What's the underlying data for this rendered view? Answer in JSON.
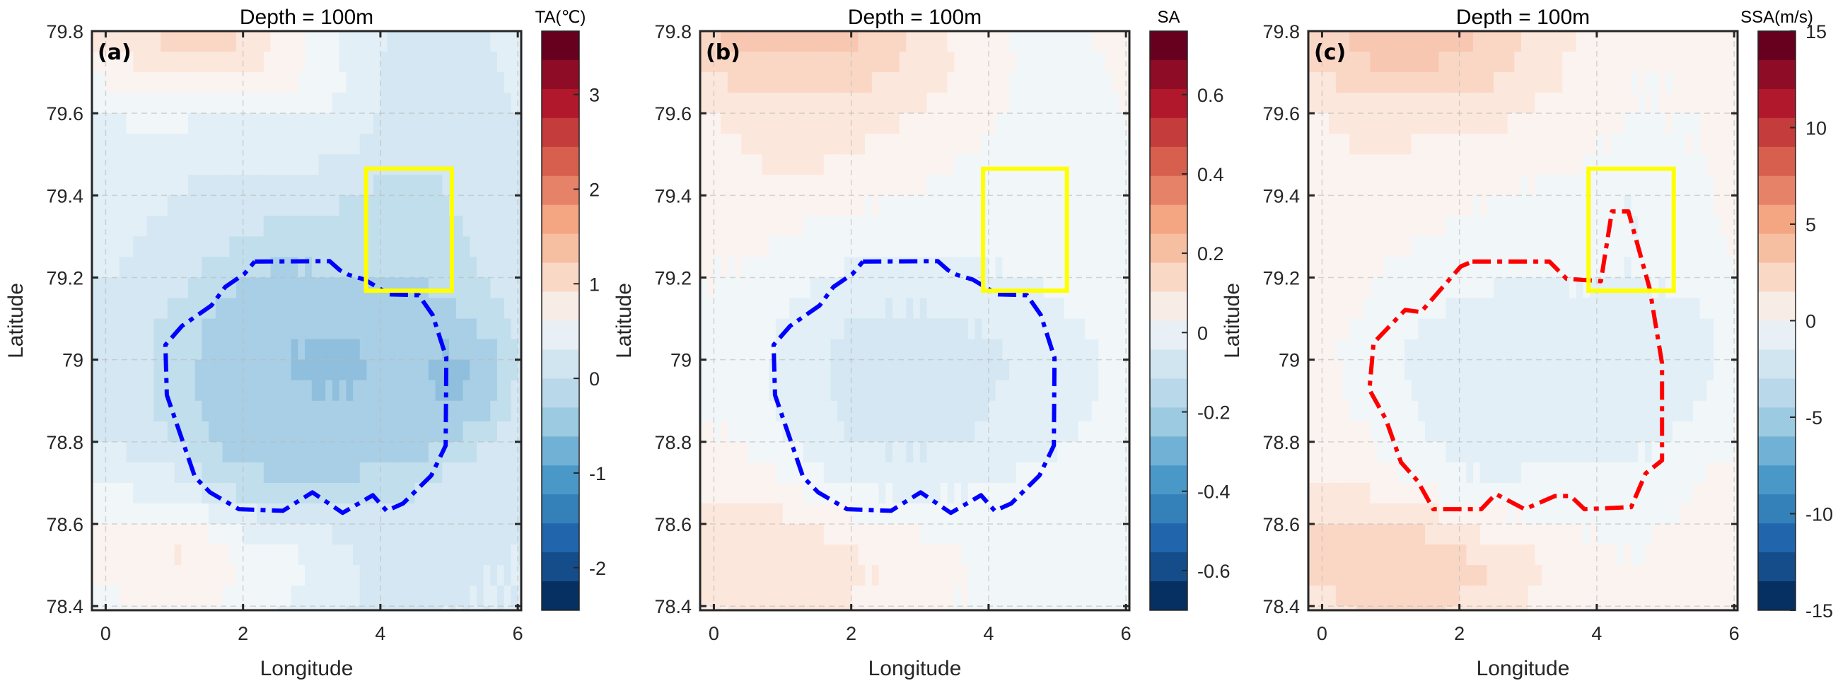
{
  "colormap": [
    "#67001f",
    "#8e0c25",
    "#b2182b",
    "#c43c3c",
    "#d6604d",
    "#e58267",
    "#f4a582",
    "#f7bfa2",
    "#fad8c6",
    "#f8ece6",
    "#e9f0f5",
    "#d1e5f0",
    "#b9d9ea",
    "#9bcae1",
    "#72b1d6",
    "#4a98c8",
    "#3480b9",
    "#2166ac",
    "#154d8a",
    "#053061"
  ],
  "chart_data": [
    {
      "type": "heatmap",
      "panel_label": "(a)",
      "title": "Depth = 100m",
      "xlabel": "Longitude",
      "ylabel": "Latitude",
      "xlim": [
        -0.2,
        6.05
      ],
      "ylim": [
        78.39,
        79.8
      ],
      "xticks": [
        "0",
        "2",
        "4",
        "6"
      ],
      "yticks": [
        "78.4",
        "78.6",
        "78.8",
        "79",
        "79.2",
        "79.4",
        "79.6",
        "79.8"
      ],
      "grid": true,
      "colorbar": {
        "title": "TA(℃)",
        "clim": [
          -2.45,
          3.67
        ],
        "ticks": [
          "-2",
          "-1",
          "0",
          "1",
          "2",
          "3"
        ]
      },
      "lons": [
        0,
        0.5,
        1,
        1.5,
        2,
        2.5,
        3,
        3.5,
        4,
        4.5,
        5,
        5.5,
        6
      ],
      "lats": [
        79.8,
        79.7,
        79.6,
        79.5,
        79.4,
        79.3,
        79.2,
        79.1,
        79.0,
        78.9,
        78.8,
        78.7,
        78.6,
        78.5,
        78.4
      ],
      "values": [
        [
          1.0,
          1.2,
          1.4,
          1.4,
          1.3,
          0.9,
          0.5,
          0.2,
          0.0,
          -0.1,
          -0.1,
          0,
          0.1
        ],
        [
          0.7,
          0.9,
          1.0,
          1.0,
          1.0,
          0.8,
          0.6,
          0.3,
          0.0,
          -0.1,
          -0.1,
          -0.1,
          0.1
        ],
        [
          0.3,
          0.4,
          0.4,
          0.3,
          0.3,
          0.3,
          0.3,
          0.2,
          0.0,
          -0.1,
          -0.1,
          -0.1,
          0
        ],
        [
          0.1,
          0.2,
          0.2,
          0.1,
          0.1,
          0.1,
          0.1,
          0.0,
          -0.1,
          -0.2,
          -0.2,
          -0.1,
          -0.1
        ],
        [
          0.1,
          0.1,
          0.0,
          -0.1,
          -0.1,
          -0.2,
          -0.2,
          -0.3,
          -0.4,
          -0.5,
          -0.3,
          -0.2,
          -0.1
        ],
        [
          0.1,
          0.0,
          -0.1,
          -0.2,
          -0.3,
          -0.4,
          -0.4,
          -0.4,
          -0.4,
          -0.5,
          -0.4,
          -0.2,
          -0.1
        ],
        [
          0.0,
          -0.1,
          -0.2,
          -0.4,
          -0.6,
          -0.7,
          -0.7,
          -0.6,
          -0.6,
          -0.6,
          -0.5,
          -0.3,
          -0.1
        ],
        [
          -0.1,
          -0.2,
          -0.4,
          -0.6,
          -0.8,
          -0.8,
          -0.8,
          -0.8,
          -0.8,
          -0.8,
          -0.7,
          -0.5,
          -0.2
        ],
        [
          -0.1,
          -0.2,
          -0.5,
          -0.7,
          -0.8,
          -0.9,
          -1.0,
          -1.0,
          -0.9,
          -0.9,
          -1.0,
          -0.9,
          -0.3
        ],
        [
          -0.1,
          -0.2,
          -0.5,
          -0.7,
          -0.8,
          -0.8,
          -0.9,
          -0.9,
          -0.8,
          -0.8,
          -1.0,
          -0.8,
          -0.2
        ],
        [
          0.0,
          -0.1,
          -0.3,
          -0.6,
          -0.8,
          -0.8,
          -0.8,
          -0.8,
          -0.8,
          -0.8,
          -0.6,
          -0.3,
          -0.1
        ],
        [
          0.3,
          0.2,
          0.1,
          -0.3,
          -0.5,
          -0.6,
          -0.6,
          -0.6,
          -0.5,
          -0.4,
          -0.2,
          -0.1,
          -0.1
        ],
        [
          0.6,
          0.6,
          0.7,
          0.5,
          0.2,
          0.1,
          0.0,
          -0.1,
          -0.1,
          -0.1,
          -0.1,
          -0.1,
          0
        ],
        [
          0.8,
          0.9,
          1.0,
          0.9,
          0.6,
          0.5,
          0.3,
          0.1,
          -0.1,
          -0.1,
          -0.1,
          0,
          0
        ],
        [
          0.5,
          0.6,
          0.6,
          0.6,
          0.4,
          0.3,
          0.2,
          0,
          -0.1,
          -0.1,
          0,
          0,
          0
        ]
      ],
      "contour": {
        "color": "#0000ff",
        "points": [
          [
            2.17,
            79.239
          ],
          [
            3.26,
            79.24
          ],
          [
            3.41,
            79.218
          ],
          [
            3.53,
            79.207
          ],
          [
            3.77,
            79.195
          ],
          [
            4.13,
            79.159
          ],
          [
            4.56,
            79.157
          ],
          [
            4.76,
            79.109
          ],
          [
            4.96,
            79.005
          ],
          [
            4.95,
            78.791
          ],
          [
            4.74,
            78.718
          ],
          [
            4.33,
            78.65
          ],
          [
            4.09,
            78.632
          ],
          [
            3.89,
            78.67
          ],
          [
            3.45,
            78.627
          ],
          [
            3.01,
            78.677
          ],
          [
            2.58,
            78.632
          ],
          [
            1.94,
            78.636
          ],
          [
            1.52,
            78.677
          ],
          [
            1.3,
            78.714
          ],
          [
            0.89,
            78.914
          ],
          [
            0.87,
            79.036
          ],
          [
            1.11,
            79.082
          ],
          [
            1.54,
            79.132
          ],
          [
            1.74,
            79.177
          ],
          [
            2.02,
            79.209
          ],
          [
            2.17,
            79.239
          ]
        ]
      },
      "box": {
        "color": "#ffff00",
        "lon": [
          3.79,
          5.04
        ],
        "lat": [
          79.168,
          79.465
        ]
      }
    },
    {
      "type": "heatmap",
      "panel_label": "(b)",
      "title": "Depth = 100m",
      "xlabel": "Longitude",
      "ylabel": "Latitude",
      "xlim": [
        -0.2,
        6.05
      ],
      "ylim": [
        78.39,
        79.8
      ],
      "xticks": [
        "0",
        "2",
        "4",
        "6"
      ],
      "yticks": [
        "78.4",
        "78.6",
        "78.8",
        "79",
        "79.2",
        "79.4",
        "79.6",
        "79.8"
      ],
      "grid": true,
      "colorbar": {
        "title": "SA",
        "clim": [
          -0.7,
          0.76
        ],
        "ticks": [
          "-0.6",
          "-0.4",
          "-0.2",
          "0",
          "0.2",
          "0.4",
          "0.6"
        ]
      },
      "lons": [
        0,
        0.5,
        1,
        1.5,
        2,
        2.5,
        3,
        3.5,
        4,
        4.5,
        5,
        5.5,
        6
      ],
      "lats": [
        79.8,
        79.7,
        79.6,
        79.5,
        79.4,
        79.3,
        79.2,
        79.1,
        79.0,
        78.9,
        78.8,
        78.7,
        78.6,
        78.5,
        78.4
      ],
      "values": [
        [
          0.25,
          0.3,
          0.3,
          0.3,
          0.28,
          0.22,
          0.15,
          0.1,
          0.05,
          0.02,
          0.02,
          0.03,
          0.05
        ],
        [
          0.18,
          0.22,
          0.22,
          0.22,
          0.2,
          0.18,
          0.15,
          0.1,
          0.05,
          0.02,
          0.02,
          0.02,
          0.04
        ],
        [
          0.1,
          0.15,
          0.15,
          0.15,
          0.14,
          0.12,
          0.1,
          0.08,
          0.04,
          0.02,
          0.01,
          0.01,
          0.03
        ],
        [
          0.06,
          0.1,
          0.12,
          0.12,
          0.1,
          0.08,
          0.06,
          0.04,
          0.02,
          0,
          0,
          0.01,
          0.02
        ],
        [
          0.05,
          0.08,
          0.08,
          0.06,
          0.05,
          0.04,
          0.03,
          0.01,
          -0.01,
          -0.02,
          0,
          0,
          0.01
        ],
        [
          0.04,
          0.05,
          0.03,
          0.01,
          0,
          -0.01,
          -0.02,
          -0.03,
          -0.03,
          -0.03,
          -0.02,
          0,
          0.01
        ],
        [
          0.03,
          0.02,
          -0.01,
          -0.04,
          -0.06,
          -0.07,
          -0.07,
          -0.06,
          -0.05,
          -0.04,
          -0.03,
          -0.01,
          0
        ],
        [
          0.02,
          0,
          -0.04,
          -0.08,
          -0.12,
          -0.13,
          -0.13,
          -0.12,
          -0.1,
          -0.08,
          -0.06,
          -0.03,
          0
        ],
        [
          0.02,
          -0.01,
          -0.06,
          -0.1,
          -0.14,
          -0.17,
          -0.18,
          -0.16,
          -0.13,
          -0.1,
          -0.1,
          -0.06,
          -0.01
        ],
        [
          0.02,
          -0.01,
          -0.06,
          -0.1,
          -0.14,
          -0.16,
          -0.16,
          -0.14,
          -0.12,
          -0.1,
          -0.1,
          -0.05,
          0
        ],
        [
          0.04,
          0.02,
          -0.03,
          -0.08,
          -0.12,
          -0.13,
          -0.13,
          -0.12,
          -0.1,
          -0.08,
          -0.05,
          -0.02,
          0.01
        ],
        [
          0.08,
          0.07,
          0.04,
          -0.02,
          -0.06,
          -0.07,
          -0.07,
          -0.06,
          -0.05,
          -0.03,
          -0.01,
          0,
          0.01
        ],
        [
          0.12,
          0.13,
          0.13,
          0.1,
          0.06,
          0.04,
          0.02,
          0.01,
          0,
          0,
          0,
          0.01,
          0.01
        ],
        [
          0.14,
          0.16,
          0.17,
          0.15,
          0.12,
          0.1,
          0.07,
          0.04,
          0.02,
          0.01,
          0.01,
          0.01,
          0.01
        ],
        [
          0.1,
          0.12,
          0.12,
          0.12,
          0.1,
          0.08,
          0.05,
          0.03,
          0.02,
          0.01,
          0.01,
          0.01,
          0.01
        ]
      ],
      "contour": {
        "color": "#0000ff",
        "points": [
          [
            2.17,
            79.239
          ],
          [
            3.26,
            79.24
          ],
          [
            3.41,
            79.218
          ],
          [
            3.53,
            79.207
          ],
          [
            3.77,
            79.195
          ],
          [
            4.13,
            79.159
          ],
          [
            4.56,
            79.157
          ],
          [
            4.76,
            79.109
          ],
          [
            4.96,
            79.005
          ],
          [
            4.95,
            78.791
          ],
          [
            4.74,
            78.718
          ],
          [
            4.33,
            78.65
          ],
          [
            4.09,
            78.632
          ],
          [
            3.89,
            78.67
          ],
          [
            3.45,
            78.627
          ],
          [
            3.01,
            78.677
          ],
          [
            2.58,
            78.632
          ],
          [
            1.94,
            78.636
          ],
          [
            1.52,
            78.677
          ],
          [
            1.3,
            78.714
          ],
          [
            0.89,
            78.914
          ],
          [
            0.87,
            79.036
          ],
          [
            1.11,
            79.082
          ],
          [
            1.54,
            79.132
          ],
          [
            1.74,
            79.177
          ],
          [
            2.02,
            79.209
          ],
          [
            2.17,
            79.239
          ]
        ]
      },
      "box": {
        "color": "#ffff00",
        "lon": [
          3.92,
          5.14
        ],
        "lat": [
          79.168,
          79.465
        ]
      }
    },
    {
      "type": "heatmap",
      "panel_label": "(c)",
      "title": "Depth = 100m",
      "xlabel": "Longitude",
      "ylabel": "Latitude",
      "xlim": [
        -0.2,
        6.05
      ],
      "ylim": [
        78.39,
        79.8
      ],
      "xticks": [
        "0",
        "2",
        "4",
        "6"
      ],
      "yticks": [
        "78.4",
        "78.6",
        "78.8",
        "79",
        "79.2",
        "79.4",
        "79.6",
        "79.8"
      ],
      "grid": true,
      "colorbar": {
        "title": "SSA(m/s)",
        "clim": [
          -15,
          15
        ],
        "ticks": [
          "-15",
          "-10",
          "-5",
          "0",
          "5",
          "10",
          "15"
        ]
      },
      "lons": [
        0,
        0.5,
        1,
        1.5,
        2,
        2.5,
        3,
        3.5,
        4,
        4.5,
        5,
        5.5,
        6
      ],
      "lats": [
        79.8,
        79.7,
        79.6,
        79.5,
        79.4,
        79.3,
        79.2,
        79.1,
        79.0,
        78.9,
        78.8,
        78.7,
        78.6,
        78.5,
        78.4
      ],
      "values": [
        [
          4,
          5,
          5.5,
          5.5,
          5,
          4,
          3,
          2,
          1,
          0.5,
          0.5,
          1,
          1.5
        ],
        [
          3,
          4,
          4.5,
          4.5,
          4,
          3.5,
          2.5,
          1.5,
          0.5,
          0,
          0,
          0.5,
          1
        ],
        [
          1.5,
          2,
          2,
          2,
          2,
          1.8,
          1.5,
          1,
          0.3,
          0,
          0,
          0,
          0.5
        ],
        [
          1,
          1.5,
          1.5,
          1.2,
          1,
          0.8,
          0.6,
          0.3,
          0,
          -0.5,
          -0.3,
          0,
          0.3
        ],
        [
          0.8,
          1,
          0.8,
          0.5,
          0.3,
          0,
          -0.2,
          -0.3,
          -0.8,
          -1.5,
          -0.8,
          -0.2,
          0.2
        ],
        [
          0.8,
          0.6,
          0.3,
          0,
          -0.3,
          -0.5,
          -0.6,
          -0.7,
          -1,
          -1.5,
          -1,
          -0.3,
          0.2
        ],
        [
          0.6,
          0.3,
          -0.2,
          -0.6,
          -1,
          -1.3,
          -1.4,
          -1.3,
          -1.3,
          -1.5,
          -1.3,
          -0.8,
          0
        ],
        [
          0.4,
          0,
          -0.8,
          -1.5,
          -2,
          -2.3,
          -2.5,
          -2.3,
          -2.2,
          -2.2,
          -2,
          -1.8,
          -0.5
        ],
        [
          0.3,
          -0.3,
          -1.2,
          -2,
          -2.5,
          -2.6,
          -2.7,
          -2.7,
          -2.6,
          -2.5,
          -2.5,
          -2.4,
          -0.6
        ],
        [
          0.3,
          -0.2,
          -1,
          -1.8,
          -2.3,
          -2.4,
          -2.5,
          -2.4,
          -2.3,
          -2.2,
          -2.4,
          -1.5,
          -0.2
        ],
        [
          0.6,
          0.3,
          -0.5,
          -1.4,
          -2,
          -2.2,
          -2,
          -1.9,
          -1.9,
          -2,
          -1.5,
          -0.5,
          0
        ],
        [
          1.5,
          1.5,
          0.5,
          -0.5,
          -1.2,
          -1.5,
          -1.3,
          -1.2,
          -1,
          -0.8,
          -0.3,
          0,
          0.2
        ],
        [
          3,
          3,
          3.2,
          2.5,
          1.5,
          0.8,
          0.3,
          0,
          -0.2,
          -0.2,
          0,
          0.2,
          0.3
        ],
        [
          3.5,
          4,
          4.5,
          4.2,
          3.5,
          3,
          2,
          1,
          0.3,
          0,
          0.2,
          0.3,
          0.3
        ],
        [
          2.5,
          3,
          3.5,
          3.2,
          2.8,
          2.2,
          1.5,
          0.8,
          0.3,
          0.2,
          0.2,
          0.3,
          0.3
        ]
      ],
      "contour": {
        "color": "#ff0000",
        "points": [
          [
            2.19,
            79.239
          ],
          [
            3.31,
            79.239
          ],
          [
            3.56,
            79.197
          ],
          [
            4.06,
            79.191
          ],
          [
            4.22,
            79.361
          ],
          [
            4.46,
            79.361
          ],
          [
            4.77,
            79.173
          ],
          [
            4.95,
            78.991
          ],
          [
            4.95,
            78.755
          ],
          [
            4.71,
            78.723
          ],
          [
            4.5,
            78.641
          ],
          [
            3.82,
            78.636
          ],
          [
            3.62,
            78.668
          ],
          [
            3.39,
            78.668
          ],
          [
            2.95,
            78.636
          ],
          [
            2.53,
            78.673
          ],
          [
            2.32,
            78.636
          ],
          [
            1.62,
            78.636
          ],
          [
            1.39,
            78.705
          ],
          [
            1.15,
            78.75
          ],
          [
            0.93,
            78.855
          ],
          [
            0.69,
            78.927
          ],
          [
            0.75,
            79.041
          ],
          [
            1.21,
            79.121
          ],
          [
            1.44,
            79.116
          ],
          [
            2.02,
            79.227
          ],
          [
            2.19,
            79.239
          ]
        ]
      },
      "box": {
        "color": "#ffff00",
        "lon": [
          3.88,
          5.12
        ],
        "lat": [
          79.168,
          79.465
        ]
      }
    }
  ]
}
